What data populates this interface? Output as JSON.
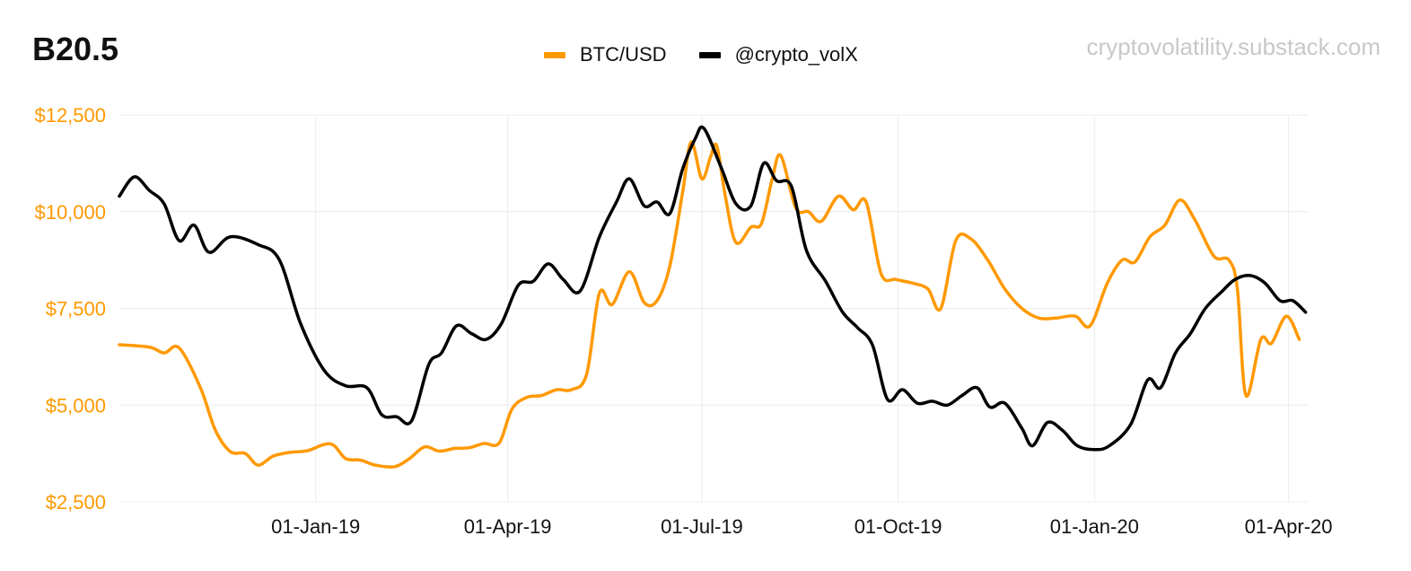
{
  "header": {
    "title": "B20.5",
    "source": "cryptovolatility.substack.com"
  },
  "chart_data": {
    "type": "line",
    "x_range": [
      "2018-10-01",
      "2020-04-10"
    ],
    "ylim": [
      2500,
      12500
    ],
    "y_ticks": [
      {
        "value": 12500,
        "label": "$12,500"
      },
      {
        "value": 10000,
        "label": "$10,000"
      },
      {
        "value": 7500,
        "label": "$7,500"
      },
      {
        "value": 5000,
        "label": "$5,000"
      },
      {
        "value": 2500,
        "label": "$2,500"
      }
    ],
    "x_ticks": [
      {
        "date": "2019-01-01",
        "label": "01-Jan-19"
      },
      {
        "date": "2019-04-01",
        "label": "01-Apr-19"
      },
      {
        "date": "2019-07-01",
        "label": "01-Jul-19"
      },
      {
        "date": "2019-10-01",
        "label": "01-Oct-19"
      },
      {
        "date": "2020-01-01",
        "label": "01-Jan-20"
      },
      {
        "date": "2020-04-01",
        "label": "01-Apr-20"
      }
    ],
    "grid": true,
    "legend_position": "top-center",
    "series": [
      {
        "name": "BTC/USD",
        "color": "#ff9900",
        "points": [
          [
            "2018-10-01",
            6560
          ],
          [
            "2018-10-15",
            6500
          ],
          [
            "2018-10-22",
            6350
          ],
          [
            "2018-10-29",
            6480
          ],
          [
            "2018-11-08",
            5450
          ],
          [
            "2018-11-15",
            4350
          ],
          [
            "2018-11-22",
            3800
          ],
          [
            "2018-11-29",
            3750
          ],
          [
            "2018-12-05",
            3450
          ],
          [
            "2018-12-12",
            3680
          ],
          [
            "2018-12-20",
            3780
          ],
          [
            "2018-12-28",
            3820
          ],
          [
            "2019-01-08",
            4000
          ],
          [
            "2019-01-15",
            3620
          ],
          [
            "2019-01-22",
            3580
          ],
          [
            "2019-01-29",
            3450
          ],
          [
            "2019-02-07",
            3410
          ],
          [
            "2019-02-14",
            3620
          ],
          [
            "2019-02-21",
            3920
          ],
          [
            "2019-02-28",
            3810
          ],
          [
            "2019-03-07",
            3880
          ],
          [
            "2019-03-14",
            3900
          ],
          [
            "2019-03-21",
            4010
          ],
          [
            "2019-03-28",
            4020
          ],
          [
            "2019-04-03",
            4900
          ],
          [
            "2019-04-10",
            5200
          ],
          [
            "2019-04-17",
            5250
          ],
          [
            "2019-04-24",
            5400
          ],
          [
            "2019-05-01",
            5400
          ],
          [
            "2019-05-08",
            5800
          ],
          [
            "2019-05-14",
            7900
          ],
          [
            "2019-05-20",
            7600
          ],
          [
            "2019-05-28",
            8450
          ],
          [
            "2019-06-04",
            7650
          ],
          [
            "2019-06-10",
            7700
          ],
          [
            "2019-06-16",
            8600
          ],
          [
            "2019-06-22",
            10500
          ],
          [
            "2019-06-26",
            11800
          ],
          [
            "2019-07-01",
            10850
          ],
          [
            "2019-07-05",
            11400
          ],
          [
            "2019-07-08",
            11700
          ],
          [
            "2019-07-12",
            10400
          ],
          [
            "2019-07-17",
            9200
          ],
          [
            "2019-07-24",
            9600
          ],
          [
            "2019-07-29",
            9700
          ],
          [
            "2019-08-03",
            10850
          ],
          [
            "2019-08-07",
            11450
          ],
          [
            "2019-08-14",
            10100
          ],
          [
            "2019-08-20",
            10000
          ],
          [
            "2019-08-26",
            9750
          ],
          [
            "2019-09-03",
            10400
          ],
          [
            "2019-09-10",
            10050
          ],
          [
            "2019-09-16",
            10250
          ],
          [
            "2019-09-23",
            8400
          ],
          [
            "2019-09-30",
            8250
          ],
          [
            "2019-10-08",
            8150
          ],
          [
            "2019-10-15",
            8000
          ],
          [
            "2019-10-21",
            7500
          ],
          [
            "2019-10-28",
            9250
          ],
          [
            "2019-11-04",
            9300
          ],
          [
            "2019-11-12",
            8750
          ],
          [
            "2019-11-20",
            8000
          ],
          [
            "2019-11-28",
            7500
          ],
          [
            "2019-12-06",
            7250
          ],
          [
            "2019-12-14",
            7250
          ],
          [
            "2019-12-23",
            7300
          ],
          [
            "2019-12-30",
            7050
          ],
          [
            "2020-01-07",
            8150
          ],
          [
            "2020-01-14",
            8750
          ],
          [
            "2020-01-20",
            8700
          ],
          [
            "2020-01-27",
            9350
          ],
          [
            "2020-02-03",
            9650
          ],
          [
            "2020-02-10",
            10300
          ],
          [
            "2020-02-17",
            9800
          ],
          [
            "2020-02-26",
            8850
          ],
          [
            "2020-03-04",
            8750
          ],
          [
            "2020-03-08",
            8000
          ],
          [
            "2020-03-12",
            5250
          ],
          [
            "2020-03-19",
            6700
          ],
          [
            "2020-03-24",
            6600
          ],
          [
            "2020-03-31",
            7300
          ],
          [
            "2020-04-06",
            6700
          ]
        ]
      },
      {
        "name": "@crypto_volX",
        "color": "#000000",
        "points": [
          [
            "2018-10-01",
            10400
          ],
          [
            "2018-10-08",
            10900
          ],
          [
            "2018-10-15",
            10550
          ],
          [
            "2018-10-22",
            10200
          ],
          [
            "2018-10-29",
            9250
          ],
          [
            "2018-11-05",
            9650
          ],
          [
            "2018-11-12",
            8950
          ],
          [
            "2018-11-22",
            9350
          ],
          [
            "2018-12-05",
            9150
          ],
          [
            "2018-12-15",
            8750
          ],
          [
            "2018-12-25",
            7100
          ],
          [
            "2019-01-05",
            5900
          ],
          [
            "2019-01-15",
            5500
          ],
          [
            "2019-01-25",
            5450
          ],
          [
            "2019-02-01",
            4750
          ],
          [
            "2019-02-08",
            4700
          ],
          [
            "2019-02-15",
            4600
          ],
          [
            "2019-02-23",
            6050
          ],
          [
            "2019-03-01",
            6350
          ],
          [
            "2019-03-08",
            7050
          ],
          [
            "2019-03-15",
            6850
          ],
          [
            "2019-03-22",
            6700
          ],
          [
            "2019-03-29",
            7100
          ],
          [
            "2019-04-06",
            8100
          ],
          [
            "2019-04-13",
            8200
          ],
          [
            "2019-04-20",
            8650
          ],
          [
            "2019-04-27",
            8250
          ],
          [
            "2019-05-05",
            7950
          ],
          [
            "2019-05-14",
            9350
          ],
          [
            "2019-05-22",
            10250
          ],
          [
            "2019-05-28",
            10850
          ],
          [
            "2019-06-04",
            10150
          ],
          [
            "2019-06-10",
            10250
          ],
          [
            "2019-06-16",
            9950
          ],
          [
            "2019-06-22",
            11100
          ],
          [
            "2019-06-28",
            11900
          ],
          [
            "2019-07-02",
            12150
          ],
          [
            "2019-07-10",
            11150
          ],
          [
            "2019-07-17",
            10200
          ],
          [
            "2019-07-24",
            10150
          ],
          [
            "2019-07-30",
            11250
          ],
          [
            "2019-08-05",
            10800
          ],
          [
            "2019-08-12",
            10650
          ],
          [
            "2019-08-19",
            9000
          ],
          [
            "2019-08-28",
            8200
          ],
          [
            "2019-09-05",
            7400
          ],
          [
            "2019-09-12",
            7000
          ],
          [
            "2019-09-19",
            6550
          ],
          [
            "2019-09-26",
            5150
          ],
          [
            "2019-10-03",
            5400
          ],
          [
            "2019-10-10",
            5050
          ],
          [
            "2019-10-17",
            5100
          ],
          [
            "2019-10-24",
            5000
          ],
          [
            "2019-10-31",
            5250
          ],
          [
            "2019-11-07",
            5450
          ],
          [
            "2019-11-13",
            4950
          ],
          [
            "2019-11-20",
            5050
          ],
          [
            "2019-11-28",
            4400
          ],
          [
            "2019-12-03",
            3950
          ],
          [
            "2019-12-10",
            4550
          ],
          [
            "2019-12-17",
            4350
          ],
          [
            "2019-12-24",
            3950
          ],
          [
            "2020-01-01",
            3850
          ],
          [
            "2020-01-08",
            3950
          ],
          [
            "2020-01-18",
            4500
          ],
          [
            "2020-01-26",
            5650
          ],
          [
            "2020-02-01",
            5450
          ],
          [
            "2020-02-08",
            6350
          ],
          [
            "2020-02-15",
            6850
          ],
          [
            "2020-02-22",
            7500
          ],
          [
            "2020-03-01",
            7950
          ],
          [
            "2020-03-07",
            8250
          ],
          [
            "2020-03-14",
            8350
          ],
          [
            "2020-03-21",
            8150
          ],
          [
            "2020-03-28",
            7700
          ],
          [
            "2020-04-03",
            7700
          ],
          [
            "2020-04-09",
            7400
          ]
        ]
      }
    ]
  }
}
